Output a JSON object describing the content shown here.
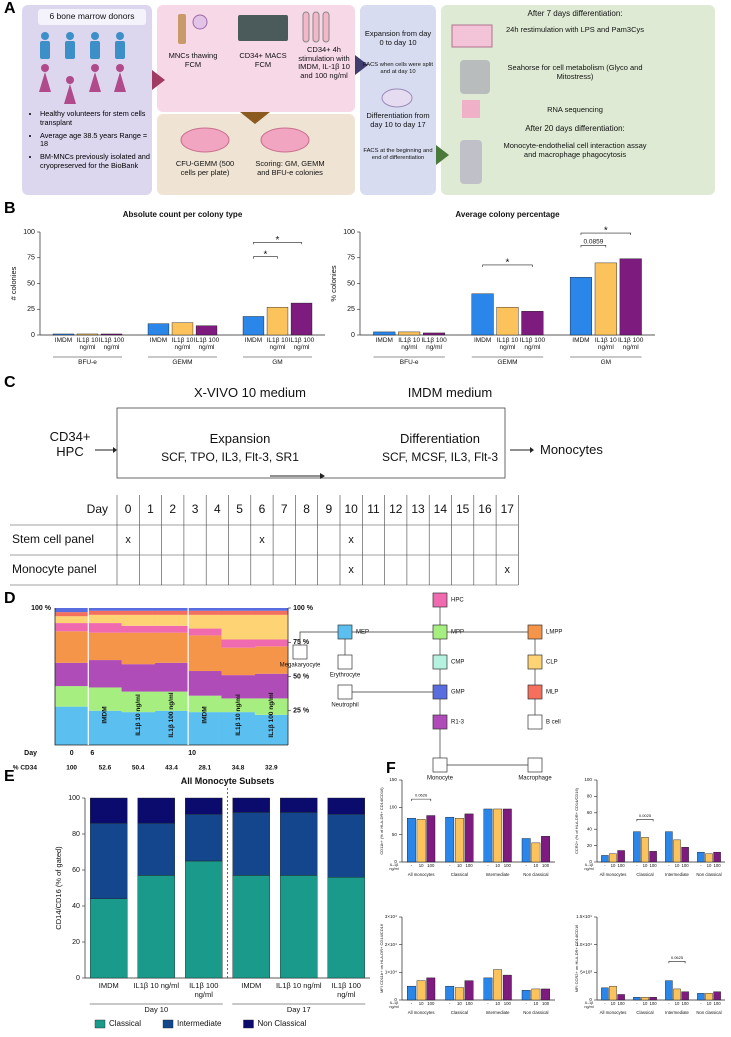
{
  "panel_labels": [
    "A",
    "B",
    "C",
    "D",
    "E",
    "F"
  ],
  "panel_a": {
    "donors": {
      "title": "6 bone marrow donors",
      "bullets": [
        "Healthy volunteers for stem cells transplant",
        "Average age 38.5 years Range = 18",
        "BM-MNCs previously isolated and cryopreserved for the BioBank"
      ]
    },
    "thawing": "MNCs thawing FCM",
    "macs": "CD34+ MACS FCM",
    "stimulation": "CD34+ 4h stimulation with IMDM, IL-1β 10 and 100 ng/ml",
    "cfu": "CFU-GEMM (500 cells per plate)",
    "scoring": "Scoring: GM, GEMM and BFU-e colonies",
    "expansion": "Expansion from day 0 to day 10",
    "facs_split": "FACS when cells were split and at day 10",
    "differentiation": "Differentiation from day 10 to day 17",
    "facs_diff": "FACS at the beginning and end of differentiation",
    "readouts_7": "After 7 days differentiation:",
    "restim": "24h restimulation with LPS and Pam3Cys",
    "seahorse": "Seahorse for cell metabolism (Glyco and Mitostress)",
    "rnaseq": "RNA sequencing",
    "readouts_20": "After 20 days differentiation:",
    "assay": "Monocyte-endothelial cell interaction assay and macrophage phagocytosis"
  },
  "panel_c": {
    "input": "CD34+ HPC",
    "media": [
      "X-VIVO 10 medium",
      "IMDM medium"
    ],
    "phases": [
      "Expansion",
      "Differentiation"
    ],
    "factors": [
      "SCF, TPO, IL3, Flt-3, SR1",
      "SCF, MCSF, IL3, Flt-3"
    ],
    "output": "Monocytes",
    "table": {
      "day_label": "Day",
      "days": [
        0,
        1,
        2,
        3,
        4,
        5,
        6,
        7,
        8,
        9,
        10,
        11,
        12,
        13,
        14,
        15,
        16,
        17
      ],
      "mark": "x",
      "rows": [
        {
          "label": "Stem cell panel",
          "days": [
            0,
            6,
            10
          ]
        },
        {
          "label": "Monocyte panel",
          "days": [
            10,
            17
          ]
        }
      ]
    }
  },
  "panel_d": {
    "nodes": [
      {
        "label": "CMP",
        "color": "#b5f2df"
      },
      {
        "label": "Megakaryocyte"
      },
      {
        "label": "Erythrocyte"
      },
      {
        "label": "Neutrophil"
      },
      {
        "label": "B cell"
      },
      {
        "label": "Monocyte"
      },
      {
        "label": "Macrophage"
      }
    ]
  },
  "chart_data": [
    {
      "type": "bar",
      "title": "Absolute count per colony type",
      "ylabel": "# colonies",
      "categories": [
        "BFU-e",
        "GEMM",
        "GM"
      ],
      "series": [
        {
          "name": "IMDM",
          "color": "#2a86e8",
          "values": [
            1,
            11,
            18
          ]
        },
        {
          "name": "IL1β 10 ng/ml",
          "color": "#fcc35c",
          "values": [
            1,
            12,
            27
          ]
        },
        {
          "name": "IL1β 100 ng/ml",
          "color": "#7d1b7e",
          "values": [
            1,
            9,
            31
          ]
        }
      ],
      "ylim": [
        0,
        100
      ],
      "yticks": [
        0,
        25,
        50,
        75,
        100
      ],
      "annotations": [
        {
          "text": "*",
          "group": 2,
          "bars": [
            0,
            1
          ],
          "y": 76
        },
        {
          "text": "*",
          "group": 2,
          "bars": [
            0,
            2
          ],
          "y": 90
        }
      ]
    },
    {
      "type": "bar",
      "title": "Average colony percentage",
      "ylabel": "% colonies",
      "categories": [
        "BFU-e",
        "GEMM",
        "GM"
      ],
      "series": [
        {
          "name": "IMDM",
          "color": "#2a86e8",
          "values": [
            3,
            40,
            56
          ]
        },
        {
          "name": "IL1β 10 ng/ml",
          "color": "#fcc35c",
          "values": [
            3,
            27,
            70
          ]
        },
        {
          "name": "IL1β 100 ng/ml",
          "color": "#7d1b7e",
          "values": [
            2,
            23,
            74
          ]
        }
      ],
      "ylim": [
        0,
        100
      ],
      "yticks": [
        0,
        25,
        50,
        75,
        100
      ],
      "annotations": [
        {
          "text": "*",
          "group": 1,
          "bars": [
            0,
            2
          ],
          "y": 68
        },
        {
          "text": "0.0859",
          "group": 2,
          "bars": [
            0,
            1
          ],
          "y": 87
        },
        {
          "text": "*",
          "group": 2,
          "bars": [
            0,
            2
          ],
          "y": 99
        }
      ]
    },
    {
      "type": "stacked_column",
      "categories": [
        null,
        "IMDM",
        "IL1β 10 ng/ml",
        "IL1β 100 ng/ml",
        "IMDM",
        "IL1β 10 ng/ml",
        "IL1β 100 ng/ml"
      ],
      "series": [
        {
          "name": "MEP",
          "color": "#5bbff0",
          "values": [
            28,
            25,
            24,
            25,
            24,
            24,
            22
          ]
        },
        {
          "name": "MPP",
          "color": "#a6ee80",
          "values": [
            15,
            17,
            15,
            14,
            12,
            10,
            12
          ]
        },
        {
          "name": "R1-3",
          "color": "#b04cb8",
          "values": [
            17,
            20,
            20,
            21,
            18,
            17,
            18
          ]
        },
        {
          "name": "LMPP",
          "color": "#f4954a",
          "values": [
            23,
            20,
            23,
            22,
            26,
            20,
            20
          ]
        },
        {
          "name": "HPC",
          "color": "#f06ab0",
          "values": [
            6,
            7,
            5,
            5,
            5,
            6,
            5
          ]
        },
        {
          "name": "CLP",
          "color": "#fdd374",
          "values": [
            5,
            6,
            8,
            8,
            10,
            18,
            18
          ]
        },
        {
          "name": "MLP",
          "color": "#f4705c",
          "values": [
            3,
            3,
            3,
            3,
            3,
            3,
            3
          ]
        },
        {
          "name": "GMP",
          "color": "#5a6de0",
          "values": [
            3,
            2,
            2,
            2,
            2,
            2,
            2
          ]
        }
      ],
      "ylim": [
        0,
        100
      ],
      "yticks": [
        {
          "value": 100,
          "label": "100 %"
        },
        {
          "value": 75,
          "label": "75 %"
        },
        {
          "value": 50,
          "label": "50 %"
        },
        {
          "value": 25,
          "label": "25 %"
        }
      ],
      "xlabel": "Day",
      "days": [
        0,
        6,
        null,
        null,
        10,
        null,
        null
      ],
      "cd34_label": "% CD34",
      "cd34": [
        100,
        52.6,
        50.4,
        43.4,
        28.1,
        34.8,
        32.9
      ]
    },
    {
      "type": "stacked_bar",
      "title": "All Monocyte Subsets",
      "ylabel": "CD14/CD16 (% of gated)",
      "categories": [
        "IMDM",
        "IL1β 10 ng/ml",
        "IL1β 100 ng/ml",
        "IMDM",
        "IL1β 10 ng/ml",
        "IL1β 100 ng/ml"
      ],
      "groups": [
        "Day 10",
        "Day 17"
      ],
      "series": [
        {
          "name": "Classical",
          "color": "#1a9a8a",
          "values": [
            44,
            57,
            65,
            57,
            57,
            56
          ]
        },
        {
          "name": "Intermediate",
          "color": "#13468c",
          "values": [
            42,
            29,
            26,
            35,
            35,
            35
          ]
        },
        {
          "name": "Non Classical",
          "color": "#0b0b6e",
          "values": [
            14,
            14,
            9,
            8,
            8,
            9
          ]
        }
      ],
      "ylim": [
        0,
        100
      ],
      "yticks": [
        0,
        20,
        40,
        60,
        80,
        100
      ],
      "legend": "bottom"
    },
    {
      "type": "bar",
      "ylabel": "CD11b+ (% of HLA-DR+ CD14/CD16)",
      "series_label": "IL-1β ng/ml",
      "categories": [
        "All monocytes",
        "Classical",
        "Intermediate",
        "Non classical"
      ],
      "series": [
        {
          "name": "-",
          "color": "#2a86e8",
          "values": [
            80,
            82,
            97,
            43
          ]
        },
        {
          "name": "10",
          "color": "#fcc35c",
          "values": [
            78,
            80,
            97,
            35
          ]
        },
        {
          "name": "100",
          "color": "#7d1b7e",
          "values": [
            85,
            88,
            97,
            47
          ]
        }
      ],
      "ylim": [
        0,
        150
      ],
      "yticks": [
        0,
        50,
        100,
        150
      ],
      "annotations": [
        {
          "text": "0.0626",
          "group": 0,
          "bars": [
            0,
            2
          ],
          "y": 115
        }
      ]
    },
    {
      "type": "bar",
      "ylabel": "CCR2+ (% of HLA-DR+ CD14/CD16)",
      "series_label": "IL-1β ng/ml",
      "categories": [
        "All monocytes",
        "Classical",
        "Intermediate",
        "Non classical"
      ],
      "series": [
        {
          "name": "-",
          "color": "#2a86e8",
          "values": [
            8,
            37,
            37,
            12
          ]
        },
        {
          "name": "10",
          "color": "#fcc35c",
          "values": [
            10,
            30,
            27,
            10
          ]
        },
        {
          "name": "100",
          "color": "#7d1b7e",
          "values": [
            14,
            13,
            18,
            12
          ]
        }
      ],
      "ylim": [
        0,
        100
      ],
      "yticks": [
        0,
        20,
        40,
        60,
        80,
        100
      ],
      "annotations": [
        {
          "text": "0.0025",
          "group": 1,
          "bars": [
            0,
            2
          ],
          "y": 52
        }
      ]
    },
    {
      "type": "bar",
      "ylabel": "MFI CD11b+ on HLA-DR+ CD14/CD16",
      "series_label": "IL-1β ng/ml",
      "categories": [
        "All monocytes",
        "Classical",
        "Intermediate",
        "Non classical"
      ],
      "series": [
        {
          "name": "-",
          "color": "#2a86e8",
          "values": [
            5000,
            5000,
            8000,
            3500
          ]
        },
        {
          "name": "10",
          "color": "#fcc35c",
          "values": [
            7000,
            4500,
            11000,
            4000
          ]
        },
        {
          "name": "100",
          "color": "#7d1b7e",
          "values": [
            8000,
            7000,
            9000,
            4000
          ]
        }
      ],
      "ylim": [
        0,
        30000
      ],
      "yticks": [
        0,
        {
          "value": 10000,
          "label": "1×10⁴"
        },
        {
          "value": 20000,
          "label": "2×10⁴"
        },
        {
          "value": 30000,
          "label": "3×10⁴"
        }
      ]
    },
    {
      "type": "bar",
      "ylabel": "MFI CCR2+ on HLA-DR+ CD14/CD16",
      "series_label": "IL-1β ng/ml",
      "categories": [
        "All monocytes",
        "Classical",
        "Intermediate",
        "Non classical"
      ],
      "series": [
        {
          "name": "-",
          "color": "#2a86e8",
          "values": [
            2200,
            500,
            3500,
            1200
          ]
        },
        {
          "name": "10",
          "color": "#fcc35c",
          "values": [
            2500,
            500,
            2000,
            1200
          ]
        },
        {
          "name": "100",
          "color": "#7d1b7e",
          "values": [
            1000,
            500,
            1500,
            1500
          ]
        }
      ],
      "ylim": [
        0,
        15000
      ],
      "yticks": [
        0,
        {
          "value": 5000,
          "label": "5×10³"
        },
        {
          "value": 10000,
          "label": "1.0×10⁴"
        },
        {
          "value": 15000,
          "label": "1.5×10⁴"
        }
      ],
      "annotations": [
        {
          "text": "0.0625",
          "group": 2,
          "bars": [
            0,
            2
          ],
          "y": 7000
        }
      ]
    }
  ]
}
